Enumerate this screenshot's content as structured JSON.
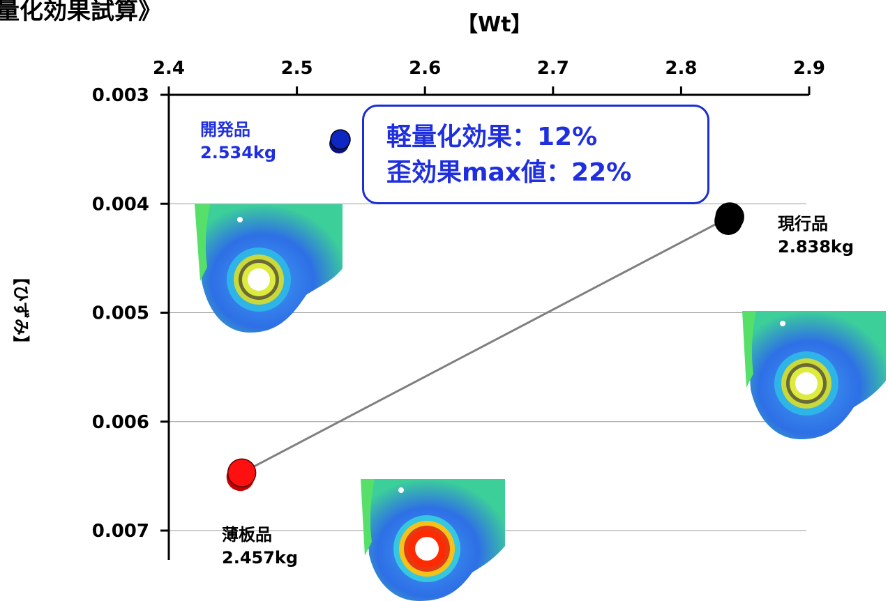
{
  "title": "量化効果試算》",
  "callout": {
    "line1": "軽量化効果：12%",
    "line2": "歪効果max値：22%"
  },
  "colors": {
    "dev": "#0f27c2",
    "current": "#000000",
    "thin": "#ff1010",
    "line": "#7f7f7f",
    "callout": "#1f2fe0"
  },
  "icons": [
    "fea-stress-map-current",
    "fea-stress-map-dev",
    "fea-stress-map-thin"
  ],
  "points": {
    "dev": {
      "name": "開発品",
      "label": "2.534kg"
    },
    "current": {
      "name": "現行品",
      "label": "2.838kg"
    },
    "thin": {
      "name": "薄板品",
      "label": "2.457kg"
    }
  },
  "chart_data": {
    "type": "scatter",
    "title": "量化効果試算》",
    "xlabel": "【Wt】",
    "ylabel": "【ひずみ】",
    "xlim": [
      2.4,
      2.9
    ],
    "ylim": [
      0.003,
      0.007
    ],
    "y_reversed": true,
    "x_ticks": [
      "2.4",
      "2.5",
      "2.6",
      "2.7",
      "2.8",
      "2.9"
    ],
    "y_ticks": [
      "0.003",
      "0.004",
      "0.005",
      "0.006",
      "0.007"
    ],
    "x_tick_values": [
      2.4,
      2.5,
      2.6,
      2.7,
      2.8,
      2.9
    ],
    "y_tick_values": [
      0.003,
      0.004,
      0.005,
      0.006,
      0.007
    ],
    "x_axis_position": "top",
    "grid": "horizontal",
    "series": [
      {
        "name": "開発品",
        "x": [
          2.534
        ],
        "y": [
          0.00341
        ],
        "color": "#0f27c2"
      },
      {
        "name": "現行品",
        "x": [
          2.838
        ],
        "y": [
          0.00412
        ],
        "color": "#000000"
      },
      {
        "name": "薄板品",
        "x": [
          2.457
        ],
        "y": [
          0.00647
        ],
        "color": "#ff1010"
      }
    ],
    "connector": {
      "from": "薄板品",
      "to": "現行品"
    }
  }
}
